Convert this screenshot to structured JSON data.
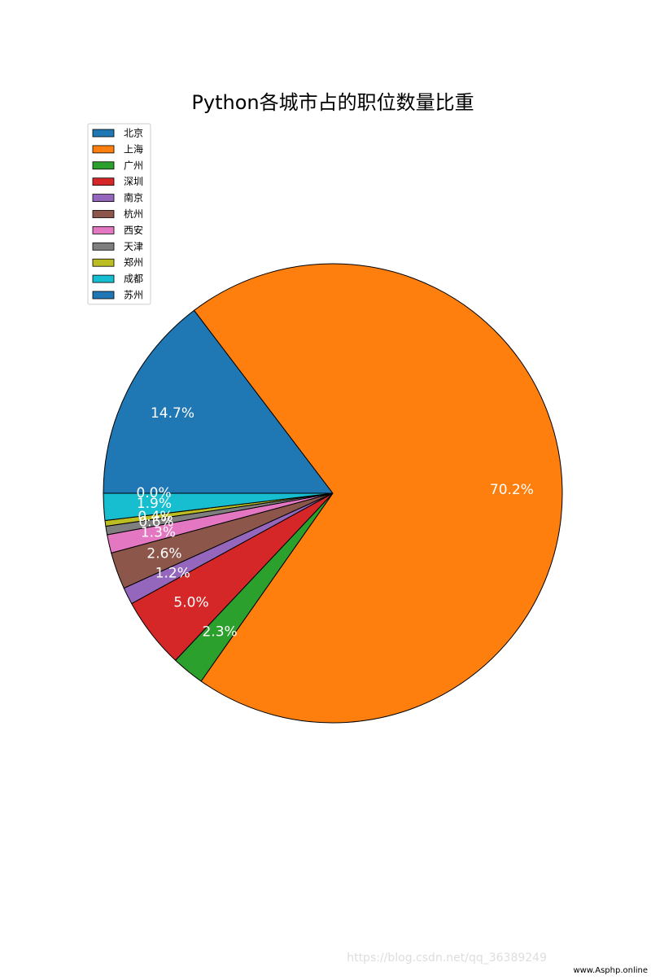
{
  "chart_data": {
    "type": "pie",
    "title": "Python各城市占的职位数量比重",
    "categories": [
      "北京",
      "上海",
      "广州",
      "深圳",
      "南京",
      "杭州",
      "西安",
      "天津",
      "郑州",
      "成都",
      "苏州"
    ],
    "values": [
      14.7,
      70.2,
      2.3,
      5.0,
      1.2,
      2.6,
      1.3,
      0.6,
      0.4,
      1.9,
      0.0
    ],
    "value_labels": [
      "14.7%",
      "70.2%",
      "2.3%",
      "5.0%",
      "1.2%",
      "2.6%",
      "1.3%",
      "0.6%",
      "0.4%",
      "1.9%",
      "0.0%"
    ],
    "colors": [
      "#1f77b4",
      "#ff7f0e",
      "#2ca02c",
      "#d62728",
      "#9467bd",
      "#8c564b",
      "#e377c2",
      "#7f7f7f",
      "#bcbd22",
      "#17becf",
      "#1f77b4"
    ],
    "legend": "upper left"
  },
  "watermark": [
    "https://blog.csdn.net/qq_36389249",
    "www.Asphp.online"
  ]
}
